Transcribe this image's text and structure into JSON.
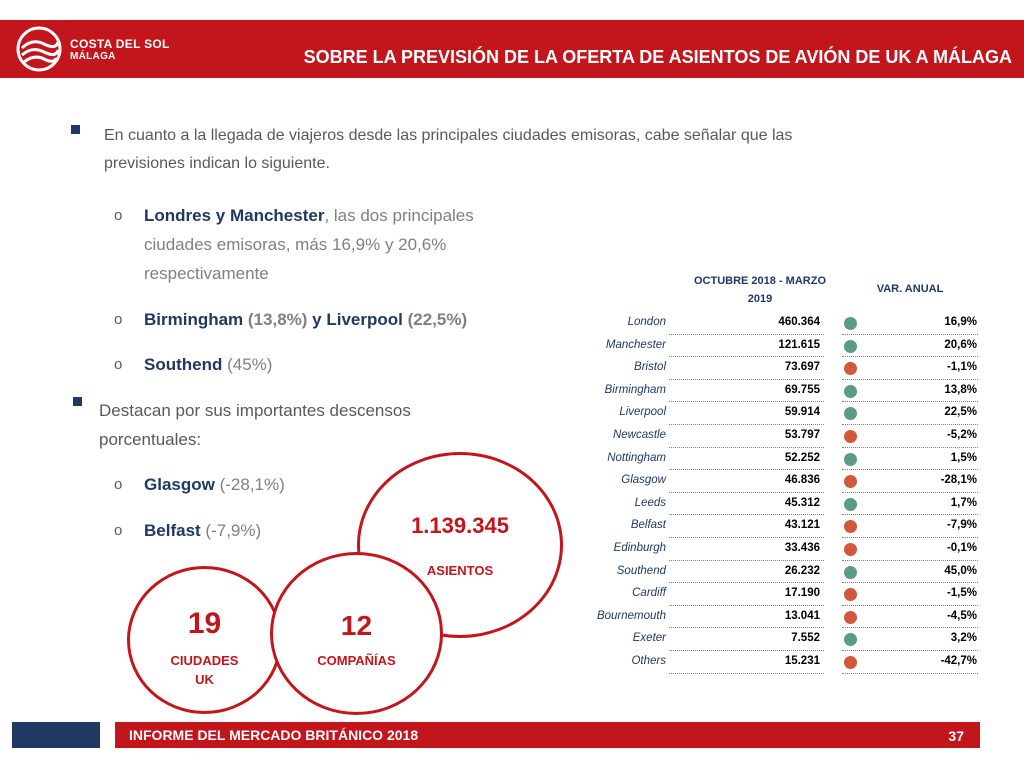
{
  "header": {
    "logo_line1": "COSTA DEL SOL",
    "logo_line2": "MÁLAGA",
    "title": "SOBRE LA PREVISIÓN DE LA OFERTA DE ASIENTOS DE AVIÓN DE UK A MÁLAGA"
  },
  "content": {
    "intro_line1": "En cuanto a la llegada de viajeros desde las principales ciudades emisoras, cabe señalar que las",
    "intro_line2": "previsiones indican lo siguiente.",
    "sub_marker": "o",
    "item1": {
      "bold": "Londres y Manchester",
      "rest_line1": ", las dos principales",
      "line2": "ciudades emisoras, más 16,9% y 20,6%",
      "line3": "respectivamente"
    },
    "item2": {
      "bold1": "Birmingham",
      "pct1": " (13,8%)",
      "conj": "  y ",
      "bold2": "Liverpool",
      "pct2": " (22,5%)"
    },
    "item3": {
      "bold": "Southend",
      "pct": " (45%)"
    },
    "decline_line1": "Destacan por sus importantes descensos",
    "decline_line2": "porcentuales:",
    "item4": {
      "bold": "Glasgow",
      "pct": " (-28,1%)"
    },
    "item5": {
      "bold": "Belfast",
      "pct": " (-7,9%)"
    }
  },
  "stats": {
    "seats_value": "1.139.345",
    "seats_label": "ASIENTOS",
    "cities_value": "19",
    "cities_label_line1": "CIUDADES",
    "cities_label_line2": "UK",
    "companies_value": "12",
    "companies_label": "COMPAÑÍAS"
  },
  "table": {
    "col_period_line1": "OCTUBRE 2018 - MARZO",
    "col_period_line2": "2019",
    "col_change": "VAR. ANUAL",
    "colors": {
      "up": "#5b9a84",
      "down": "#d2573b"
    },
    "rows": [
      {
        "city": "London",
        "seats": "460.364",
        "change": "16,9%",
        "trend": "up"
      },
      {
        "city": "Manchester",
        "seats": "121.615",
        "change": "20,6%",
        "trend": "up"
      },
      {
        "city": "Bristol",
        "seats": "73.697",
        "change": "-1,1%",
        "trend": "down"
      },
      {
        "city": "Birmingham",
        "seats": "69.755",
        "change": "13,8%",
        "trend": "up"
      },
      {
        "city": "Liverpool",
        "seats": "59.914",
        "change": "22,5%",
        "trend": "up"
      },
      {
        "city": "Newcastle",
        "seats": "53.797",
        "change": "-5,2%",
        "trend": "down"
      },
      {
        "city": "Nottingham",
        "seats": "52.252",
        "change": "1,5%",
        "trend": "up"
      },
      {
        "city": "Glasgow",
        "seats": "46.836",
        "change": "-28,1%",
        "trend": "down"
      },
      {
        "city": "Leeds",
        "seats": "45.312",
        "change": "1,7%",
        "trend": "up"
      },
      {
        "city": "Belfast",
        "seats": "43.121",
        "change": "-7,9%",
        "trend": "down"
      },
      {
        "city": "Edinburgh",
        "seats": "33.436",
        "change": "-0,1%",
        "trend": "down"
      },
      {
        "city": "Southend",
        "seats": "26.232",
        "change": "45,0%",
        "trend": "up"
      },
      {
        "city": "Cardiff",
        "seats": "17.190",
        "change": "-1,5%",
        "trend": "down"
      },
      {
        "city": "Bournemouth",
        "seats": "13.041",
        "change": "-4,5%",
        "trend": "down"
      },
      {
        "city": "Exeter",
        "seats": "7.552",
        "change": "3,2%",
        "trend": "up"
      },
      {
        "city": "Others",
        "seats": "15.231",
        "change": "-42,7%",
        "trend": "down"
      }
    ]
  },
  "footer": {
    "report_title": "INFORME DEL MERCADO BRITÁNICO 2018",
    "page_number": "37"
  }
}
